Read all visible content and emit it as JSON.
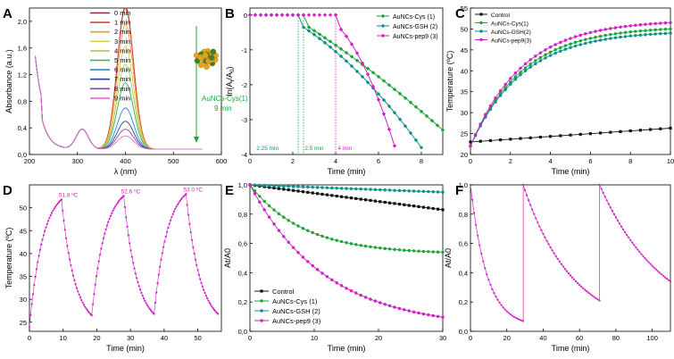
{
  "colors": {
    "green": "#1fa33a",
    "teal": "#0e8f8c",
    "magenta": "#d21fc6",
    "black": "#111111",
    "axis": "#000000"
  },
  "chart_data": [
    {
      "panel": "A",
      "type": "line",
      "xlabel": "λ (nm)",
      "ylabel": "Absorbance (a.u.)",
      "xlim": [
        200,
        600
      ],
      "ylim": [
        0,
        2.2
      ],
      "xticks": [
        200,
        300,
        400,
        500,
        600
      ],
      "yticks": [
        0.0,
        0.4,
        0.8,
        1.2,
        1.6,
        2.0
      ],
      "ytick_labels": [
        "0,0",
        "0,4",
        "0,8",
        "1,2",
        "1,6",
        "2,0"
      ],
      "annotation": {
        "line1": "AuNCs-Cys(1)",
        "line2": "9 min"
      },
      "series": [
        {
          "name": "0 min",
          "color": "#8b2a2a",
          "peak": 2.15,
          "base": 0.0
        },
        {
          "name": "1 min",
          "color": "#e0453a",
          "peak": 2.12,
          "base": 0.0
        },
        {
          "name": "2 min",
          "color": "#f59a3c",
          "peak": 1.88,
          "base": 0.0
        },
        {
          "name": "3 min",
          "color": "#d8cf4a",
          "peak": 1.55,
          "base": 0.0
        },
        {
          "name": "4 min",
          "color": "#a9cf5a",
          "peak": 1.28,
          "base": 0.0
        },
        {
          "name": "5 min",
          "color": "#37a95f",
          "peak": 1.0,
          "base": 0.0
        },
        {
          "name": "6 min",
          "color": "#2f89c7",
          "peak": 0.62,
          "base": 0.0
        },
        {
          "name": "7 min",
          "color": "#2b3f9e",
          "peak": 0.42,
          "base": 0.0
        },
        {
          "name": "8 min",
          "color": "#7d4aa0",
          "peak": 0.3,
          "base": 0.0
        },
        {
          "name": "9 min",
          "color": "#e56fd0",
          "peak": 0.2,
          "base": 0.0
        }
      ]
    },
    {
      "panel": "B",
      "type": "scatter",
      "xlabel": "Time (min)",
      "ylabel": "ln(At/A0)",
      "ylabel_parts": {
        "pre": "ln(A",
        "sub1": "t",
        "mid": "/A",
        "sub2": "0",
        "post": ")"
      },
      "xlim": [
        0,
        9
      ],
      "ylim": [
        -4,
        0.2
      ],
      "xticks": [
        0,
        2,
        4,
        6,
        8
      ],
      "yticks": [
        0,
        -1,
        -2,
        -3,
        -4
      ],
      "legend": [
        "AuNCs-Cys (1)",
        "AuNCs-GSH (2)",
        "AuNCs-pep9 (3)"
      ],
      "legend_bold": [
        "1",
        "2",
        "3"
      ],
      "lag_labels": [
        "2.25 min",
        "2.5 min",
        "4 min"
      ],
      "lag_times": [
        2.25,
        2.5,
        4.0
      ],
      "series": [
        {
          "name": "AuNCs-Cys (1)",
          "color": "green",
          "t0": 2.5,
          "t1": 9.0,
          "y1": -3.3,
          "curve": 0.15
        },
        {
          "name": "AuNCs-GSH (2)",
          "color": "teal",
          "t0": 2.25,
          "t1": 8.0,
          "y1": -3.8,
          "curve": 0.35
        },
        {
          "name": "AuNCs-pep9 (3)",
          "color": "magenta",
          "t0": 4.0,
          "t1": 6.8,
          "y1": -3.85,
          "curve": 0.5
        }
      ]
    },
    {
      "panel": "C",
      "type": "line",
      "xlabel": "Time (min)",
      "ylabel": "Temperature (ºC)",
      "xlim": [
        0,
        10
      ],
      "ylim": [
        20,
        55
      ],
      "xticks": [
        0,
        2,
        4,
        6,
        8,
        10
      ],
      "yticks": [
        20,
        25,
        30,
        35,
        40,
        45,
        50,
        55
      ],
      "legend": [
        "Control",
        "AuNCs-Cys(1)",
        "AuNCs-GSH(2)",
        "AuNCs-pep9(3)"
      ],
      "series": [
        {
          "name": "Control",
          "color": "black",
          "start": 23.0,
          "end": 26.3
        },
        {
          "name": "AuNCs-Cys(1)",
          "color": "green",
          "start": 22.0,
          "end": 50.0
        },
        {
          "name": "AuNCs-GSH(2)",
          "color": "teal",
          "start": 22.0,
          "end": 49.0
        },
        {
          "name": "AuNCs-pep9(3)",
          "color": "magenta",
          "start": 22.0,
          "end": 51.5
        }
      ]
    },
    {
      "panel": "D",
      "type": "line",
      "xlabel": "Time (min)",
      "ylabel": "Temperature (ºC)",
      "xlim": [
        0,
        57
      ],
      "ylim": [
        23,
        55
      ],
      "xticks": [
        0,
        10,
        20,
        30,
        40,
        50
      ],
      "yticks": [
        25,
        30,
        35,
        40,
        45,
        50
      ],
      "peak_labels": [
        "51.8 ºC",
        "52.6 ºC",
        "53.0 ºC"
      ],
      "cycles": [
        {
          "start": 0,
          "peak_t": 9.5,
          "peak": 51.8,
          "end": 18.5,
          "base": 26.5
        },
        {
          "start": 18.5,
          "peak_t": 28.0,
          "peak": 52.6,
          "end": 37.0,
          "base": 26.8
        },
        {
          "start": 37.0,
          "peak_t": 46.5,
          "peak": 53.0,
          "end": 56.0,
          "base": 26.8
        }
      ]
    },
    {
      "panel": "E",
      "type": "scatter",
      "xlabel": "Time (min)",
      "ylabel": "At/A0",
      "xlim": [
        0,
        30
      ],
      "ylim": [
        0,
        1.0
      ],
      "xticks": [
        0,
        10,
        20,
        30
      ],
      "yticks": [
        0.0,
        0.2,
        0.4,
        0.6,
        0.8,
        1.0
      ],
      "ytick_labels": [
        "0,0",
        "0,2",
        "0,4",
        "0,6",
        "0,8",
        "1,0"
      ],
      "legend": [
        "Control",
        "AuNCs-Cys (1)",
        "AuNCs-GSH (2)",
        "AuNCs-pep9 (3)"
      ],
      "series": [
        {
          "name": "Control",
          "color": "black",
          "end": 0.83,
          "shape": "linear"
        },
        {
          "name": "AuNCs-Cys (1)",
          "color": "green",
          "end": 0.54,
          "shape": "exp"
        },
        {
          "name": "AuNCs-GSH (2)",
          "color": "teal",
          "end": 0.95,
          "shape": "linear"
        },
        {
          "name": "AuNCs-pep9 (3)",
          "color": "magenta",
          "end": 0.08,
          "shape": "exp2"
        }
      ]
    },
    {
      "panel": "F",
      "type": "scatter",
      "xlabel": "Time (min)",
      "ylabel": "At/A0",
      "xlim": [
        0,
        110
      ],
      "ylim": [
        0,
        1.0
      ],
      "xticks": [
        0,
        20,
        40,
        60,
        80,
        100
      ],
      "yticks": [
        0.0,
        0.2,
        0.4,
        0.6,
        0.8,
        1.0
      ],
      "ytick_labels": [
        "0,0",
        "0,2",
        "0,4",
        "0,6",
        "0,8",
        "1,0"
      ],
      "segments": [
        {
          "t0": 0,
          "t1": 29,
          "end": 0.07,
          "k": 3.2
        },
        {
          "t0": 29,
          "t1": 71,
          "end": 0.21,
          "k": 1.55
        },
        {
          "t0": 71,
          "t1": 110,
          "end": 0.34,
          "k": 1.1
        }
      ]
    }
  ],
  "panel_labels": [
    "A",
    "B",
    "C",
    "D",
    "E",
    "F"
  ]
}
